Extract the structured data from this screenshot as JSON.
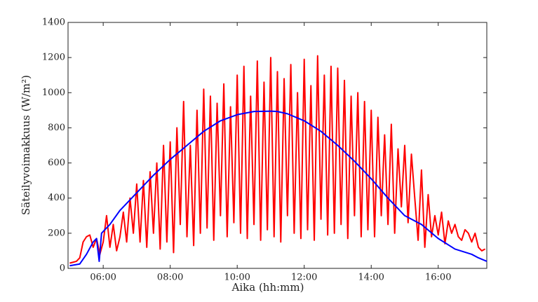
{
  "chart_data": {
    "type": "line",
    "x_label": "Aika (hh:mm)",
    "y_label": "Säteilyvoimakkuus (W/m²)",
    "xlim": [
      4.95,
      17.45
    ],
    "xticks": [
      {
        "value": 6,
        "label": "06:00"
      },
      {
        "value": 8,
        "label": "08:00"
      },
      {
        "value": 10,
        "label": "10:00"
      },
      {
        "value": 12,
        "label": "12:00"
      },
      {
        "value": 14,
        "label": "14:00"
      },
      {
        "value": 16,
        "label": "16:00"
      }
    ],
    "ylim": [
      0,
      1400
    ],
    "yticks": [
      0,
      200,
      400,
      600,
      800,
      1000,
      1200,
      1400
    ],
    "series": [
      {
        "color": "#ff0000",
        "x": [
          5.0,
          5.1,
          5.2,
          5.3,
          5.4,
          5.5,
          5.6,
          5.7,
          5.8,
          5.9,
          6.0,
          6.1,
          6.2,
          6.3,
          6.4,
          6.5,
          6.6,
          6.7,
          6.8,
          6.9,
          7.0,
          7.1,
          7.2,
          7.3,
          7.4,
          7.5,
          7.6,
          7.7,
          7.8,
          7.9,
          8.0,
          8.1,
          8.2,
          8.3,
          8.4,
          8.5,
          8.6,
          8.7,
          8.8,
          8.9,
          9.0,
          9.1,
          9.2,
          9.3,
          9.4,
          9.5,
          9.6,
          9.7,
          9.8,
          9.9,
          10.0,
          10.1,
          10.2,
          10.3,
          10.4,
          10.5,
          10.6,
          10.7,
          10.8,
          10.9,
          11.0,
          11.1,
          11.2,
          11.3,
          11.4,
          11.5,
          11.6,
          11.7,
          11.8,
          11.9,
          12.0,
          12.1,
          12.2,
          12.3,
          12.4,
          12.5,
          12.6,
          12.7,
          12.8,
          12.9,
          13.0,
          13.1,
          13.2,
          13.3,
          13.4,
          13.5,
          13.6,
          13.7,
          13.8,
          13.9,
          14.0,
          14.1,
          14.2,
          14.3,
          14.4,
          14.5,
          14.6,
          14.7,
          14.8,
          14.9,
          15.0,
          15.1,
          15.2,
          15.3,
          15.4,
          15.5,
          15.6,
          15.7,
          15.8,
          15.9,
          16.0,
          16.1,
          16.2,
          16.3,
          16.4,
          16.5,
          16.6,
          16.7,
          16.8,
          16.9,
          17.0,
          17.1,
          17.2,
          17.3,
          17.4
        ],
        "values": [
          30,
          35,
          40,
          60,
          150,
          180,
          190,
          120,
          170,
          80,
          150,
          300,
          120,
          250,
          100,
          180,
          320,
          150,
          400,
          200,
          480,
          150,
          500,
          120,
          550,
          200,
          600,
          110,
          700,
          150,
          720,
          90,
          800,
          250,
          950,
          180,
          700,
          130,
          900,
          200,
          1020,
          230,
          980,
          160,
          940,
          300,
          1050,
          180,
          920,
          260,
          1100,
          200,
          1150,
          170,
          980,
          250,
          1180,
          160,
          1060,
          220,
          1200,
          180,
          1120,
          150,
          1080,
          300,
          1160,
          200,
          1000,
          170,
          1190,
          220,
          1040,
          160,
          1210,
          280,
          1100,
          190,
          1150,
          200,
          1140,
          250,
          1070,
          170,
          980,
          300,
          1000,
          180,
          950,
          220,
          900,
          180,
          860,
          300,
          760,
          250,
          820,
          200,
          680,
          350,
          700,
          260,
          650,
          400,
          160,
          560,
          120,
          420,
          180,
          300,
          190,
          320,
          140,
          270,
          200,
          250,
          180,
          160,
          220,
          200,
          150,
          200,
          120,
          100,
          110
        ]
      },
      {
        "color": "#0000ff",
        "x": [
          5.0,
          5.3,
          5.5,
          5.7,
          5.8,
          5.88,
          5.95,
          6.2,
          6.5,
          7.0,
          7.5,
          8.0,
          8.5,
          9.0,
          9.5,
          10.0,
          10.5,
          11.0,
          11.2,
          11.5,
          12.0,
          12.5,
          13.0,
          13.5,
          14.0,
          14.5,
          15.0,
          15.5,
          16.0,
          16.5,
          17.0,
          17.2,
          17.45
        ],
        "values": [
          15,
          25,
          80,
          150,
          170,
          40,
          200,
          250,
          330,
          430,
          530,
          620,
          700,
          780,
          840,
          875,
          893,
          895,
          893,
          880,
          840,
          780,
          700,
          610,
          510,
          400,
          300,
          250,
          170,
          110,
          80,
          60,
          40
        ]
      }
    ]
  }
}
